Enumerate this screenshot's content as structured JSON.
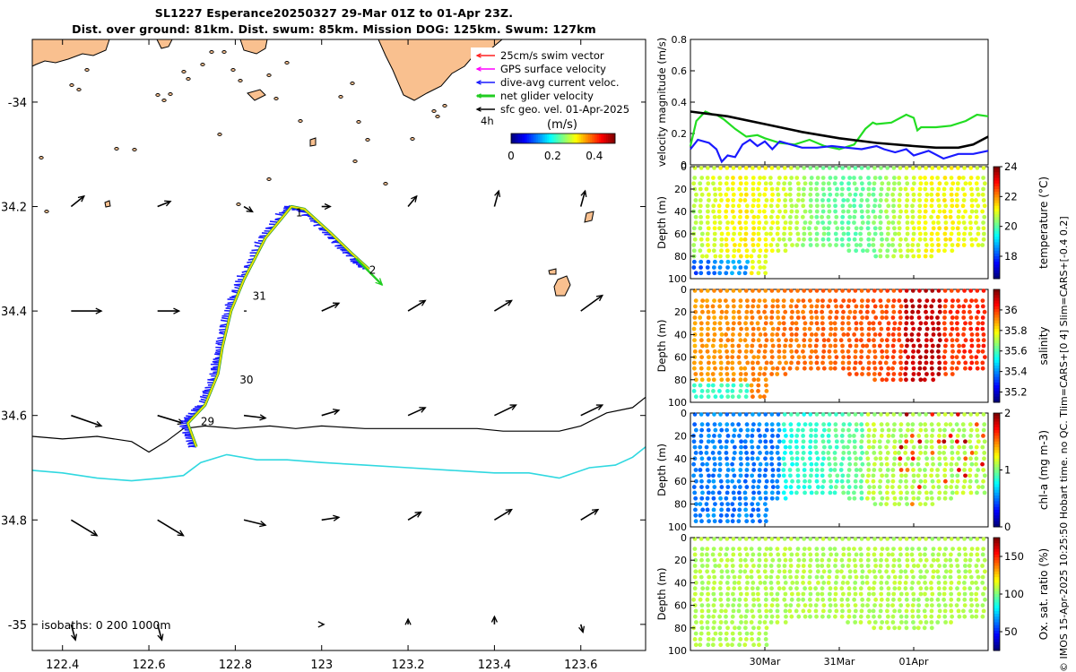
{
  "title": {
    "line1": "SL1227 Esperance20250327 29-Mar 01Z to 01-Apr 23Z.",
    "line2": "Dist. over ground: 81km. Dist. swum: 85km. Mission DOG: 125km. Swum: 127km"
  },
  "side_text": "© IMOS 15-Apr-2025 10:25:50 Hobart time. no QC. Tlim=CARS+[0 4] Slim=CARS+[-0.4 0.2]",
  "colors": {
    "land": "#f9c08f",
    "isobath_0": "#000000",
    "isobath_200": "#000000",
    "isobath_1000": "#30d8e0",
    "track": "#f0e000",
    "current": "#1a1aff",
    "net": "#22cc22",
    "geo": "#000000",
    "swim": "#ff2020",
    "gps": "#ff00ff"
  },
  "chart_data": [
    {
      "type": "map",
      "id": "track-map",
      "xlim": [
        122.33,
        123.75
      ],
      "ylim": [
        -35.05,
        -33.88
      ],
      "x_ticks": [
        "122.4",
        "122.6",
        "122.8",
        "123",
        "123.2",
        "123.4",
        "123.6"
      ],
      "x_tick_values": [
        122.4,
        122.6,
        122.8,
        123.0,
        123.2,
        123.4,
        123.6
      ],
      "y_ticks": [
        "-34",
        "34.2",
        "34.4",
        "34.6",
        "34.8",
        "-35"
      ],
      "y_tick_values": [
        -34.0,
        -34.2,
        -34.4,
        -34.6,
        -34.8,
        -35.0
      ],
      "legend": [
        {
          "label": "25cm/s swim vector",
          "color": "#ff2020"
        },
        {
          "label": "GPS surface velocity",
          "color": "#ff00ff"
        },
        {
          "label": "dive-avg current veloc.",
          "color": "#1a1aff"
        },
        {
          "label": "net glider velocity",
          "color": "#22cc22"
        },
        {
          "label": "sfc geo. vel. 01-Apr-2025",
          "color": "#000000"
        }
      ],
      "legend_note": "4h",
      "colorbar": {
        "title": "(m/s)",
        "ticks": [
          "0",
          "0.2",
          "0.4"
        ],
        "range": [
          0,
          0.5
        ]
      },
      "isobath_label": "isobaths: 0   200  1000m",
      "day_labels": [
        {
          "label": "1",
          "lon": 122.94,
          "lat": -34.21
        },
        {
          "label": "2",
          "lon": 123.11,
          "lat": -34.32
        },
        {
          "label": "31",
          "lon": 122.84,
          "lat": -34.37
        },
        {
          "label": "30",
          "lon": 122.81,
          "lat": -34.53
        },
        {
          "label": "29",
          "lon": 122.72,
          "lat": -34.61
        }
      ],
      "track": [
        [
          122.71,
          -34.66
        ],
        [
          122.69,
          -34.615
        ],
        [
          122.73,
          -34.58
        ],
        [
          122.76,
          -34.52
        ],
        [
          122.77,
          -34.47
        ],
        [
          122.79,
          -34.4
        ],
        [
          122.82,
          -34.34
        ],
        [
          122.87,
          -34.26
        ],
        [
          122.93,
          -34.2
        ],
        [
          122.96,
          -34.205
        ],
        [
          123.02,
          -34.25
        ],
        [
          123.07,
          -34.29
        ],
        [
          123.11,
          -34.32
        ]
      ],
      "net_velocity": {
        "from": [
          123.08,
          -34.3
        ],
        "to": [
          123.14,
          -34.35
        ]
      },
      "isobath_0": [
        [
          122.33,
          -34.64
        ],
        [
          122.4,
          -34.645
        ],
        [
          122.48,
          -34.64
        ],
        [
          122.56,
          -34.65
        ],
        [
          122.6,
          -34.67
        ],
        [
          122.64,
          -34.65
        ],
        [
          122.68,
          -34.625
        ],
        [
          122.73,
          -34.62
        ],
        [
          122.8,
          -34.625
        ],
        [
          122.88,
          -34.62
        ],
        [
          122.94,
          -34.625
        ],
        [
          123.0,
          -34.62
        ],
        [
          123.1,
          -34.625
        ],
        [
          123.2,
          -34.625
        ],
        [
          123.28,
          -34.625
        ],
        [
          123.36,
          -34.625
        ],
        [
          123.42,
          -34.63
        ],
        [
          123.48,
          -34.63
        ],
        [
          123.55,
          -34.63
        ],
        [
          123.6,
          -34.62
        ],
        [
          123.66,
          -34.595
        ],
        [
          123.72,
          -34.585
        ],
        [
          123.75,
          -34.565
        ]
      ],
      "isobath_1000": [
        [
          122.33,
          -34.705
        ],
        [
          122.4,
          -34.71
        ],
        [
          122.48,
          -34.72
        ],
        [
          122.56,
          -34.725
        ],
        [
          122.63,
          -34.72
        ],
        [
          122.68,
          -34.715
        ],
        [
          122.72,
          -34.69
        ],
        [
          122.78,
          -34.675
        ],
        [
          122.85,
          -34.685
        ],
        [
          122.92,
          -34.685
        ],
        [
          123.0,
          -34.69
        ],
        [
          123.1,
          -34.695
        ],
        [
          123.2,
          -34.7
        ],
        [
          123.3,
          -34.705
        ],
        [
          123.4,
          -34.71
        ],
        [
          123.48,
          -34.71
        ],
        [
          123.55,
          -34.72
        ],
        [
          123.62,
          -34.7
        ],
        [
          123.68,
          -34.695
        ],
        [
          123.72,
          -34.68
        ],
        [
          123.75,
          -34.66
        ]
      ],
      "geo_vectors": [
        [
          122.42,
          -34.2,
          0.03,
          0.02
        ],
        [
          122.62,
          -34.2,
          0.03,
          0.01
        ],
        [
          122.82,
          -34.2,
          0.02,
          -0.01
        ],
        [
          123.0,
          -34.2,
          0.02,
          0.0
        ],
        [
          123.2,
          -34.2,
          0.02,
          0.02
        ],
        [
          123.4,
          -34.2,
          0.01,
          0.03
        ],
        [
          123.6,
          -34.2,
          0.01,
          0.03
        ],
        [
          122.42,
          -34.4,
          0.07,
          0.0
        ],
        [
          122.62,
          -34.4,
          0.05,
          0.0
        ],
        [
          122.82,
          -34.4,
          0.0,
          0.0
        ],
        [
          123.0,
          -34.4,
          0.04,
          0.015
        ],
        [
          123.2,
          -34.4,
          0.04,
          0.02
        ],
        [
          123.4,
          -34.4,
          0.04,
          0.02
        ],
        [
          123.6,
          -34.4,
          0.05,
          0.03
        ],
        [
          122.42,
          -34.6,
          0.07,
          -0.02
        ],
        [
          122.62,
          -34.6,
          0.06,
          -0.015
        ],
        [
          122.82,
          -34.6,
          0.05,
          -0.005
        ],
        [
          123.0,
          -34.6,
          0.04,
          0.01
        ],
        [
          123.2,
          -34.6,
          0.04,
          0.015
        ],
        [
          123.4,
          -34.6,
          0.05,
          0.02
        ],
        [
          123.6,
          -34.6,
          0.05,
          0.02
        ],
        [
          122.42,
          -34.8,
          0.06,
          -0.03
        ],
        [
          122.62,
          -34.8,
          0.06,
          -0.03
        ],
        [
          122.82,
          -34.8,
          0.05,
          -0.01
        ],
        [
          123.0,
          -34.8,
          0.04,
          0.005
        ],
        [
          123.2,
          -34.8,
          0.03,
          0.015
        ],
        [
          123.4,
          -34.8,
          0.04,
          0.02
        ],
        [
          123.6,
          -34.8,
          0.04,
          0.02
        ],
        [
          122.42,
          -35.0,
          0.01,
          -0.03
        ],
        [
          122.62,
          -35.0,
          0.01,
          -0.03
        ],
        [
          123.0,
          -35.0,
          0.005,
          0.0
        ],
        [
          123.2,
          -35.0,
          0.0,
          0.01
        ],
        [
          123.4,
          -35.0,
          0.0,
          0.015
        ],
        [
          123.6,
          -35.0,
          0.005,
          -0.015
        ]
      ]
    },
    {
      "type": "line",
      "id": "velocity",
      "ylabel": "velocity magnitude (m/s)",
      "ylim": [
        0,
        0.8
      ],
      "y_ticks": [
        "0",
        "0.2",
        "0.4",
        "0.6",
        "0.8"
      ],
      "xlim": [
        0,
        4
      ],
      "series": [
        {
          "name": "net glider velocity",
          "color": "#22dd22",
          "x": [
            0,
            0.08,
            0.2,
            0.3,
            0.35,
            0.45,
            0.6,
            0.75,
            0.9,
            1.0,
            1.2,
            1.4,
            1.6,
            1.8,
            2.0,
            2.2,
            2.35,
            2.45,
            2.5,
            2.7,
            2.9,
            3.0,
            3.05,
            3.1,
            3.3,
            3.5,
            3.7,
            3.85,
            4.0
          ],
          "y": [
            0.12,
            0.28,
            0.34,
            0.32,
            0.32,
            0.29,
            0.23,
            0.18,
            0.19,
            0.17,
            0.14,
            0.13,
            0.16,
            0.12,
            0.1,
            0.13,
            0.23,
            0.27,
            0.26,
            0.27,
            0.32,
            0.3,
            0.22,
            0.24,
            0.24,
            0.25,
            0.28,
            0.32,
            0.31
          ]
        },
        {
          "name": "dive-avg current veloc.",
          "color": "#1a1aff",
          "x": [
            0,
            0.1,
            0.25,
            0.35,
            0.42,
            0.5,
            0.6,
            0.7,
            0.8,
            0.9,
            1.0,
            1.1,
            1.2,
            1.35,
            1.5,
            1.7,
            1.9,
            2.1,
            2.3,
            2.5,
            2.6,
            2.75,
            2.9,
            3.0,
            3.2,
            3.4,
            3.6,
            3.8,
            4.0
          ],
          "y": [
            0.1,
            0.16,
            0.14,
            0.1,
            0.02,
            0.06,
            0.05,
            0.13,
            0.16,
            0.12,
            0.15,
            0.1,
            0.15,
            0.13,
            0.11,
            0.11,
            0.12,
            0.11,
            0.1,
            0.12,
            0.1,
            0.08,
            0.1,
            0.06,
            0.09,
            0.04,
            0.07,
            0.07,
            0.09
          ]
        },
        {
          "name": "sfc geo. vel.",
          "color": "#000000",
          "x": [
            0,
            0.5,
            1.0,
            1.5,
            2.0,
            2.5,
            3.0,
            3.3,
            3.6,
            3.8,
            4.0
          ],
          "y": [
            0.34,
            0.31,
            0.26,
            0.21,
            0.17,
            0.14,
            0.12,
            0.11,
            0.11,
            0.13,
            0.18
          ]
        }
      ]
    },
    {
      "type": "scatter",
      "id": "temperature",
      "ylabel": "Depth (m)",
      "cbar_label": "temperature (°C)",
      "ylim": [
        100,
        0
      ],
      "y_ticks": [
        "0",
        "20",
        "40",
        "60",
        "80",
        "100"
      ],
      "cbar_ticks": [
        "18",
        "20",
        "22",
        "24"
      ],
      "crange": [
        16.5,
        24
      ]
    },
    {
      "type": "scatter",
      "id": "salinity",
      "ylabel": "Depth (m)",
      "cbar_label": "salinity",
      "ylim": [
        100,
        0
      ],
      "y_ticks": [
        "0",
        "20",
        "40",
        "60",
        "80",
        "100"
      ],
      "cbar_ticks": [
        "35.2",
        "35.4",
        "35.6",
        "35.8",
        "36"
      ],
      "crange": [
        35.1,
        36.2
      ]
    },
    {
      "type": "scatter",
      "id": "chla",
      "ylabel": "Depth (m)",
      "cbar_label": "chl-a (mg m-3)",
      "ylim": [
        100,
        0
      ],
      "y_ticks": [
        "0",
        "20",
        "40",
        "60",
        "80",
        "100"
      ],
      "cbar_ticks": [
        "0",
        "1",
        "2"
      ],
      "crange": [
        0,
        2
      ]
    },
    {
      "type": "scatter",
      "id": "oxygen",
      "ylabel": "Depth (m)",
      "cbar_label": "Ox. sat. ratio (%)",
      "ylim": [
        100,
        0
      ],
      "y_ticks": [
        "0",
        "20",
        "40",
        "60",
        "80",
        "100"
      ],
      "cbar_ticks": [
        "50",
        "100",
        "150"
      ],
      "crange": [
        25,
        175
      ],
      "x_ticks": [
        "30Mar",
        "31Mar",
        "01Apr"
      ],
      "x_tick_values": [
        1,
        2,
        3
      ]
    }
  ]
}
